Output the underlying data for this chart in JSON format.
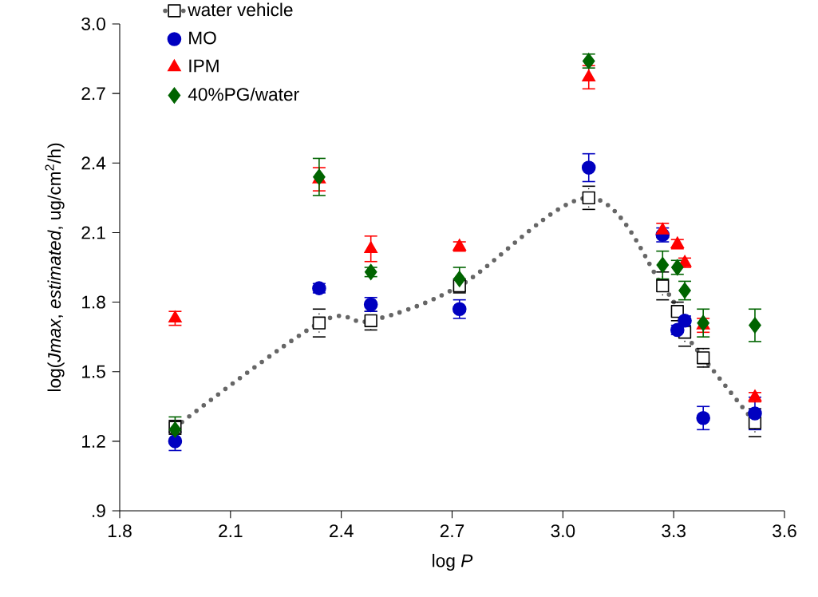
{
  "chart_data": {
    "type": "scatter",
    "xlabel": "log *P*",
    "ylabel": "log(*Jmax*, *estimated*, ug/cm$^{2}$/h)",
    "x": [
      1.95,
      2.34,
      2.48,
      2.72,
      3.07,
      3.27,
      3.31,
      3.33,
      3.38,
      3.52
    ],
    "series": [
      {
        "name": "water vehicle",
        "type": "line",
        "color": "#000000",
        "marker": "square",
        "line_style": "dotted",
        "values": [
          1.26,
          1.71,
          1.72,
          1.87,
          2.25,
          1.87,
          1.76,
          1.67,
          1.56,
          1.28
        ],
        "errors": [
          0.03,
          0.06,
          0.04,
          0.03,
          0.05,
          0.06,
          0.04,
          0.06,
          0.04,
          0.06
        ]
      },
      {
        "name": "MO",
        "type": "scatter",
        "color": "#0000c0",
        "marker": "circle",
        "values": [
          1.2,
          1.86,
          1.79,
          1.77,
          2.38,
          2.09,
          1.68,
          1.72,
          1.3,
          1.32
        ],
        "errors": [
          0.04,
          0.02,
          0.03,
          0.04,
          0.06,
          0.03,
          0.02,
          0.02,
          0.05,
          0.07
        ]
      },
      {
        "name": "IPM",
        "type": "scatter",
        "color": "#ff0000",
        "marker": "triangle",
        "values": [
          1.73,
          2.33,
          2.03,
          2.04,
          2.77,
          2.11,
          2.05,
          1.97,
          1.7,
          1.39
        ],
        "errors": [
          0.03,
          0.05,
          0.055,
          0.02,
          0.05,
          0.03,
          0.02,
          0.02,
          0.03,
          0.02
        ]
      },
      {
        "name": "40%PG/water",
        "type": "scatter",
        "color": "#006400",
        "marker": "diamond",
        "values": [
          1.25,
          2.34,
          1.93,
          1.9,
          2.84,
          1.96,
          1.95,
          1.85,
          1.71,
          1.7
        ],
        "errors": [
          0.055,
          0.08,
          0.02,
          0.05,
          0.03,
          0.06,
          0.03,
          0.04,
          0.06,
          0.07
        ]
      }
    ],
    "xlim": [
      1.8,
      3.6
    ],
    "xticks": [
      1.8,
      2.1,
      2.4,
      2.7,
      {
        "value": 3.0,
        "label": "3.0"
      },
      3.3,
      3.6
    ],
    "ylim": [
      0.9,
      3.0
    ],
    "yticks": [
      {
        "value": 0.9,
        "label": ".9"
      },
      1.2,
      1.5,
      1.8,
      2.1,
      2.4,
      2.7,
      {
        "value": 3.0,
        "label": "3.0"
      }
    ],
    "legend": "top left",
    "grid": false
  }
}
